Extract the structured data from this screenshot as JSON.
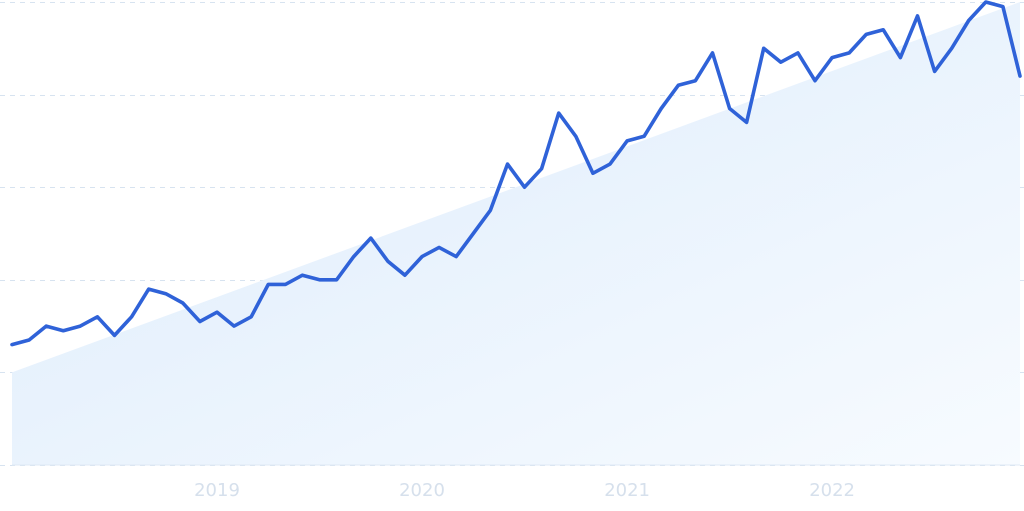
{
  "chart_data": {
    "type": "line",
    "title": "",
    "xlabel": "",
    "ylabel": "",
    "ylim": [
      0,
      100
    ],
    "grid": true,
    "y_tick_labels_visible": false,
    "x_tick_labels": [
      {
        "label": "2019",
        "x": 12.0
      },
      {
        "label": "2020",
        "x": 24.0
      },
      {
        "label": "2021",
        "x": 36.0
      },
      {
        "label": "2022",
        "x": 48.0
      }
    ],
    "series": [
      {
        "color": "#2f62d8",
        "x": [
          0,
          1,
          2,
          3,
          4,
          5,
          6,
          7,
          8,
          9,
          10,
          11,
          12,
          13,
          14,
          15,
          16,
          17,
          18,
          19,
          20,
          21,
          22,
          23,
          24,
          25,
          26,
          27,
          28,
          29,
          30,
          31,
          32,
          33,
          34,
          35,
          36,
          37,
          38,
          39,
          40,
          41,
          42,
          43,
          44,
          45,
          46,
          47,
          48,
          49,
          50,
          51,
          52,
          53,
          54,
          55,
          56,
          57,
          58,
          59
        ],
        "values": [
          26,
          27,
          30,
          29,
          30,
          32,
          28,
          32,
          38,
          37,
          35,
          31,
          33,
          30,
          32,
          39,
          39,
          41,
          40,
          40,
          45,
          49,
          44,
          41,
          45,
          47,
          45,
          50,
          55,
          65,
          60,
          64,
          76,
          71,
          63,
          65,
          70,
          71,
          77,
          82,
          83,
          89,
          77,
          74,
          90,
          87,
          89,
          83,
          88,
          89,
          93,
          94,
          88,
          97,
          85,
          90,
          96,
          100,
          99,
          84
        ]
      }
    ],
    "trend_area": {
      "color": "#dcebfb",
      "from": 20,
      "to": 100
    }
  }
}
